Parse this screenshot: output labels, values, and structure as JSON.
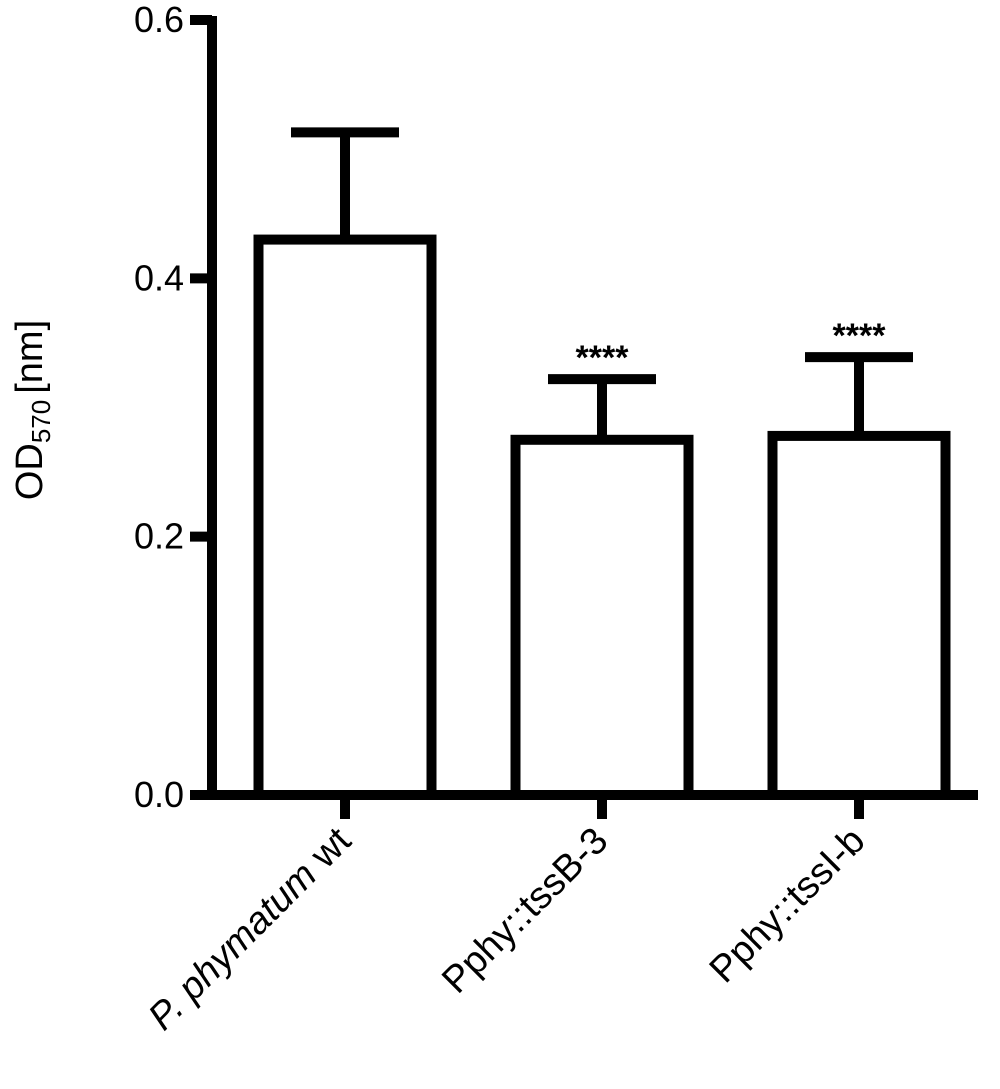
{
  "chart_data": {
    "type": "bar",
    "title": "",
    "xlabel": "",
    "ylabel": "OD570 [nm]",
    "ylabel_parts": {
      "main": "OD",
      "subscript": "570",
      "unit": "[nm]"
    },
    "ylim": [
      0,
      0.6
    ],
    "yticks": [
      0.0,
      0.2,
      0.4,
      0.6
    ],
    "ytick_labels": [
      "0.0",
      "0.2",
      "0.4",
      "0.6"
    ],
    "categories": [
      "P. phymatum wt",
      "Pphy::tssB-3",
      "Pphy::tssI-b"
    ],
    "category_labels": [
      [
        {
          "text": "P. phymatum",
          "italic": true
        },
        {
          "text": " wt",
          "italic": false
        }
      ],
      [
        {
          "text": "Pphy::tssB-3",
          "italic": false
        }
      ],
      [
        {
          "text": "Pphy::tssI-b",
          "italic": false
        }
      ]
    ],
    "values": [
      0.43,
      0.275,
      0.278
    ],
    "error_upper": [
      0.513,
      0.322,
      0.339
    ],
    "annotations": [
      "",
      "****",
      "****"
    ],
    "grid": false,
    "legend": "none",
    "colors": {
      "bar_fill": "#ffffff",
      "stroke": "#000000"
    }
  }
}
